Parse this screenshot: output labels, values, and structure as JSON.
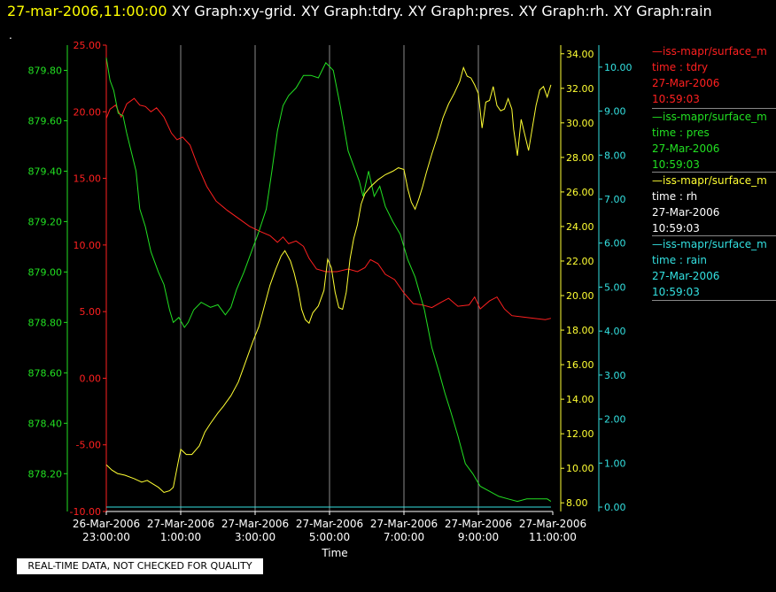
{
  "header": {
    "timestamp": "27-mar-2006,11:00:00",
    "graphs": "XY Graph:xy-grid.  XY Graph:tdry.  XY Graph:pres.  XY Graph:rh.  XY Graph:rain",
    "dot": "."
  },
  "footer": {
    "quality_note": "REAL-TIME DATA, NOT CHECKED FOR QUALITY"
  },
  "legend": [
    {
      "source": "iss-mapr/surface_m",
      "variable": "time : tdry",
      "date": "27-Mar-2006",
      "time": "10:59:03",
      "color": "#ff2020"
    },
    {
      "source": "iss-mapr/surface_m",
      "variable": "time : pres",
      "date": "27-Mar-2006",
      "time": "10:59:03",
      "color": "#22e022"
    },
    {
      "source": "iss-mapr/surface_m",
      "variable": "time : rh",
      "date": "27-Mar-2006",
      "time": "10:59:03",
      "color": "#ffff33"
    },
    {
      "source": "iss-mapr/surface_m",
      "variable": "time : rain",
      "date": "27-Mar-2006",
      "time": "10:59:03",
      "color": "#33e0e0"
    }
  ],
  "chart_data": {
    "type": "line",
    "xlabel": "Time",
    "x_range": [
      "2006-03-26 23:00",
      "2006-03-27 11:00"
    ],
    "x_ticks": [
      [
        "26-Mar-2006",
        "23:00:00"
      ],
      [
        "27-Mar-2006",
        "1:00:00"
      ],
      [
        "27-Mar-2006",
        "3:00:00"
      ],
      [
        "27-Mar-2006",
        "5:00:00"
      ],
      [
        "27-Mar-2006",
        "7:00:00"
      ],
      [
        "27-Mar-2006",
        "9:00:00"
      ],
      [
        "27-Mar-2006",
        "11:00:00"
      ]
    ],
    "grid": "vertical",
    "axes": {
      "tdry": {
        "color": "#ff2020",
        "range": [
          -10,
          25
        ],
        "ticks": [
          "25.00",
          "20.00",
          "15.00",
          "10.00",
          "5.00",
          "0.00",
          "-5.00",
          "-10.00"
        ]
      },
      "pres": {
        "color": "#22e022",
        "range": [
          878.05,
          879.9
        ],
        "ticks": [
          "879.80",
          "879.60",
          "879.40",
          "879.20",
          "879.00",
          "878.80",
          "878.60",
          "878.40",
          "878.20"
        ]
      },
      "rh": {
        "color": "#ffff33",
        "range": [
          7.5,
          34.5
        ],
        "ticks": [
          "34.00",
          "32.00",
          "30.00",
          "28.00",
          "26.00",
          "24.00",
          "22.00",
          "20.00",
          "18.00",
          "16.00",
          "14.00",
          "12.00",
          "10.00",
          "8.00"
        ]
      },
      "rain": {
        "color": "#33e0e0",
        "range": [
          -0.1,
          10.5
        ],
        "ticks": [
          "10.00",
          "9.00",
          "8.00",
          "7.00",
          "6.00",
          "5.00",
          "4.00",
          "3.00",
          "2.00",
          "1.00",
          "0.00"
        ]
      }
    },
    "series": [
      {
        "name": "tdry",
        "axis": "tdry",
        "color": "#ff2020",
        "points": [
          [
            0,
            19.5
          ],
          [
            0.1,
            20.2
          ],
          [
            0.25,
            20.5
          ],
          [
            0.4,
            19.6
          ],
          [
            0.55,
            20.6
          ],
          [
            0.75,
            21.0
          ],
          [
            0.9,
            20.5
          ],
          [
            1.05,
            20.4
          ],
          [
            1.2,
            20.0
          ],
          [
            1.35,
            20.3
          ],
          [
            1.55,
            19.6
          ],
          [
            1.75,
            18.4
          ],
          [
            1.9,
            17.9
          ],
          [
            2.05,
            18.1
          ],
          [
            2.25,
            17.5
          ],
          [
            2.45,
            16.0
          ],
          [
            2.7,
            14.4
          ],
          [
            2.95,
            13.3
          ],
          [
            3.25,
            12.6
          ],
          [
            3.55,
            12.0
          ],
          [
            3.85,
            11.4
          ],
          [
            4.15,
            11.0
          ],
          [
            4.4,
            10.7
          ],
          [
            4.6,
            10.2
          ],
          [
            4.75,
            10.6
          ],
          [
            4.9,
            10.1
          ],
          [
            5.1,
            10.3
          ],
          [
            5.3,
            9.9
          ],
          [
            5.45,
            9.0
          ],
          [
            5.65,
            8.2
          ],
          [
            5.9,
            8.0
          ],
          [
            6.2,
            8.0
          ],
          [
            6.5,
            8.2
          ],
          [
            6.75,
            8.0
          ],
          [
            6.95,
            8.3
          ],
          [
            7.1,
            8.9
          ],
          [
            7.3,
            8.6
          ],
          [
            7.5,
            7.8
          ],
          [
            7.75,
            7.4
          ],
          [
            8.0,
            6.4
          ],
          [
            8.25,
            5.6
          ],
          [
            8.5,
            5.5
          ],
          [
            8.75,
            5.3
          ],
          [
            9.0,
            5.7
          ],
          [
            9.2,
            6.0
          ],
          [
            9.45,
            5.4
          ],
          [
            9.75,
            5.5
          ],
          [
            9.9,
            6.1
          ],
          [
            10.05,
            5.2
          ],
          [
            10.3,
            5.8
          ],
          [
            10.5,
            6.1
          ],
          [
            10.7,
            5.2
          ],
          [
            10.9,
            4.7
          ],
          [
            11.2,
            4.6
          ],
          [
            11.5,
            4.5
          ],
          [
            11.8,
            4.4
          ],
          [
            11.95,
            4.5
          ]
        ]
      },
      {
        "name": "pres",
        "axis": "pres",
        "color": "#22e022",
        "points": [
          [
            0,
            879.85
          ],
          [
            0.1,
            879.76
          ],
          [
            0.2,
            879.72
          ],
          [
            0.32,
            879.63
          ],
          [
            0.45,
            879.62
          ],
          [
            0.55,
            879.55
          ],
          [
            0.7,
            879.46
          ],
          [
            0.8,
            879.4
          ],
          [
            0.9,
            879.25
          ],
          [
            1.05,
            879.18
          ],
          [
            1.2,
            879.08
          ],
          [
            1.4,
            879.0
          ],
          [
            1.55,
            878.95
          ],
          [
            1.7,
            878.85
          ],
          [
            1.8,
            878.8
          ],
          [
            1.95,
            878.82
          ],
          [
            2.1,
            878.78
          ],
          [
            2.2,
            878.8
          ],
          [
            2.35,
            878.85
          ],
          [
            2.55,
            878.88
          ],
          [
            2.8,
            878.86
          ],
          [
            3.0,
            878.87
          ],
          [
            3.2,
            878.83
          ],
          [
            3.35,
            878.86
          ],
          [
            3.5,
            878.93
          ],
          [
            3.7,
            879.0
          ],
          [
            3.9,
            879.08
          ],
          [
            4.1,
            879.16
          ],
          [
            4.3,
            879.25
          ],
          [
            4.45,
            879.4
          ],
          [
            4.6,
            879.56
          ],
          [
            4.75,
            879.66
          ],
          [
            4.9,
            879.7
          ],
          [
            5.1,
            879.73
          ],
          [
            5.3,
            879.78
          ],
          [
            5.5,
            879.78
          ],
          [
            5.7,
            879.77
          ],
          [
            5.9,
            879.83
          ],
          [
            6.1,
            879.8
          ],
          [
            6.3,
            879.65
          ],
          [
            6.5,
            879.48
          ],
          [
            6.65,
            879.42
          ],
          [
            6.8,
            879.36
          ],
          [
            6.9,
            879.3
          ],
          [
            7.05,
            879.4
          ],
          [
            7.2,
            879.3
          ],
          [
            7.35,
            879.34
          ],
          [
            7.5,
            879.26
          ],
          [
            7.7,
            879.2
          ],
          [
            7.9,
            879.15
          ],
          [
            8.1,
            879.05
          ],
          [
            8.3,
            878.98
          ],
          [
            8.55,
            878.85
          ],
          [
            8.75,
            878.7
          ],
          [
            8.95,
            878.6
          ],
          [
            9.1,
            878.52
          ],
          [
            9.25,
            878.45
          ],
          [
            9.45,
            878.35
          ],
          [
            9.65,
            878.24
          ],
          [
            9.85,
            878.2
          ],
          [
            10.05,
            878.15
          ],
          [
            10.3,
            878.13
          ],
          [
            10.55,
            878.11
          ],
          [
            10.8,
            878.1
          ],
          [
            11.05,
            878.09
          ],
          [
            11.3,
            878.1
          ],
          [
            11.6,
            878.1
          ],
          [
            11.85,
            878.1
          ],
          [
            11.95,
            878.09
          ]
        ]
      },
      {
        "name": "rh",
        "axis": "rh",
        "color": "#ffff33",
        "points": [
          [
            0,
            10.2
          ],
          [
            0.15,
            9.9
          ],
          [
            0.3,
            9.7
          ],
          [
            0.5,
            9.6
          ],
          [
            0.75,
            9.4
          ],
          [
            0.95,
            9.2
          ],
          [
            1.1,
            9.3
          ],
          [
            1.25,
            9.1
          ],
          [
            1.4,
            8.9
          ],
          [
            1.55,
            8.6
          ],
          [
            1.7,
            8.7
          ],
          [
            1.8,
            8.9
          ],
          [
            1.9,
            10.0
          ],
          [
            2.0,
            11.1
          ],
          [
            2.15,
            10.8
          ],
          [
            2.3,
            10.8
          ],
          [
            2.5,
            11.3
          ],
          [
            2.65,
            12.1
          ],
          [
            2.8,
            12.6
          ],
          [
            3.0,
            13.2
          ],
          [
            3.15,
            13.6
          ],
          [
            3.35,
            14.2
          ],
          [
            3.55,
            15.0
          ],
          [
            3.75,
            16.2
          ],
          [
            3.95,
            17.4
          ],
          [
            4.1,
            18.2
          ],
          [
            4.25,
            19.4
          ],
          [
            4.4,
            20.6
          ],
          [
            4.55,
            21.5
          ],
          [
            4.7,
            22.3
          ],
          [
            4.8,
            22.6
          ],
          [
            4.95,
            22.0
          ],
          [
            5.05,
            21.3
          ],
          [
            5.15,
            20.4
          ],
          [
            5.25,
            19.2
          ],
          [
            5.35,
            18.6
          ],
          [
            5.45,
            18.4
          ],
          [
            5.55,
            19.0
          ],
          [
            5.7,
            19.4
          ],
          [
            5.85,
            20.3
          ],
          [
            5.95,
            22.1
          ],
          [
            6.05,
            21.6
          ],
          [
            6.15,
            20.2
          ],
          [
            6.25,
            19.3
          ],
          [
            6.35,
            19.2
          ],
          [
            6.45,
            20.2
          ],
          [
            6.55,
            22.1
          ],
          [
            6.65,
            23.3
          ],
          [
            6.75,
            24.1
          ],
          [
            6.85,
            25.3
          ],
          [
            6.95,
            25.9
          ],
          [
            7.1,
            26.3
          ],
          [
            7.3,
            26.7
          ],
          [
            7.5,
            27.0
          ],
          [
            7.7,
            27.2
          ],
          [
            7.85,
            27.4
          ],
          [
            8.0,
            27.3
          ],
          [
            8.1,
            26.2
          ],
          [
            8.2,
            25.4
          ],
          [
            8.3,
            25.0
          ],
          [
            8.4,
            25.6
          ],
          [
            8.5,
            26.3
          ],
          [
            8.6,
            27.1
          ],
          [
            8.75,
            28.2
          ],
          [
            8.9,
            29.2
          ],
          [
            9.05,
            30.3
          ],
          [
            9.2,
            31.1
          ],
          [
            9.35,
            31.7
          ],
          [
            9.5,
            32.4
          ],
          [
            9.6,
            33.2
          ],
          [
            9.7,
            32.7
          ],
          [
            9.8,
            32.6
          ],
          [
            9.9,
            32.2
          ],
          [
            10.0,
            31.7
          ],
          [
            10.1,
            29.7
          ],
          [
            10.2,
            31.2
          ],
          [
            10.3,
            31.3
          ],
          [
            10.4,
            32.1
          ],
          [
            10.5,
            31.0
          ],
          [
            10.6,
            30.7
          ],
          [
            10.7,
            30.8
          ],
          [
            10.8,
            31.4
          ],
          [
            10.9,
            30.8
          ],
          [
            10.95,
            29.6
          ],
          [
            11.05,
            28.1
          ],
          [
            11.15,
            30.2
          ],
          [
            11.25,
            29.3
          ],
          [
            11.35,
            28.4
          ],
          [
            11.45,
            29.7
          ],
          [
            11.55,
            31.0
          ],
          [
            11.65,
            31.9
          ],
          [
            11.75,
            32.1
          ],
          [
            11.85,
            31.5
          ],
          [
            11.95,
            32.2
          ]
        ]
      },
      {
        "name": "rain",
        "axis": "rain",
        "color": "#33e0e0",
        "points": [
          [
            0,
            0.0
          ],
          [
            11.95,
            0.0
          ]
        ]
      }
    ]
  }
}
